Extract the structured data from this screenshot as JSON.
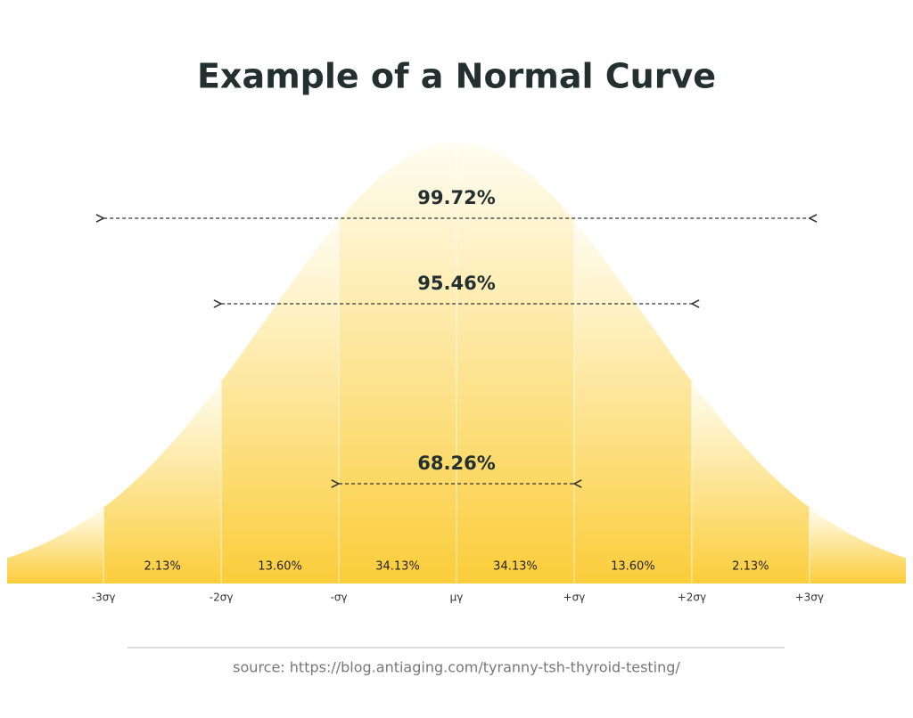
{
  "chart_data": {
    "type": "normal",
    "title": "Example of a Normal Curve",
    "xlim": [
      -3.82,
      3.82
    ],
    "xticks": [
      {
        "value": -3,
        "label": "-3σγ"
      },
      {
        "value": -2,
        "label": "-2σγ"
      },
      {
        "value": -1,
        "label": "-σγ"
      },
      {
        "value": 0,
        "label": "μγ"
      },
      {
        "value": 1,
        "label": "+σγ"
      },
      {
        "value": 2,
        "label": "+2σγ"
      },
      {
        "value": 3,
        "label": "+3σγ"
      }
    ],
    "values": [
      2.13,
      13.6,
      34.13,
      34.13,
      13.6,
      2.13
    ],
    "value_labels": [
      "2.13%",
      "13.60%",
      "34.13%",
      "34.13%",
      "13.60%",
      "2.13%"
    ],
    "ranges": [
      {
        "value": 99.72,
        "label": "99.72%",
        "from": -3,
        "to": 3
      },
      {
        "value": 95.46,
        "label": "95.46%",
        "from": -2,
        "to": 2
      },
      {
        "value": 68.26,
        "label": "68.26%",
        "from": -1,
        "to": 1
      }
    ],
    "color_top": "#fffdf2",
    "color_bottom": "#fbcd3a",
    "source": "source: https://blog.antiaging.com/tyranny-tsh-thyroid-testing/"
  }
}
